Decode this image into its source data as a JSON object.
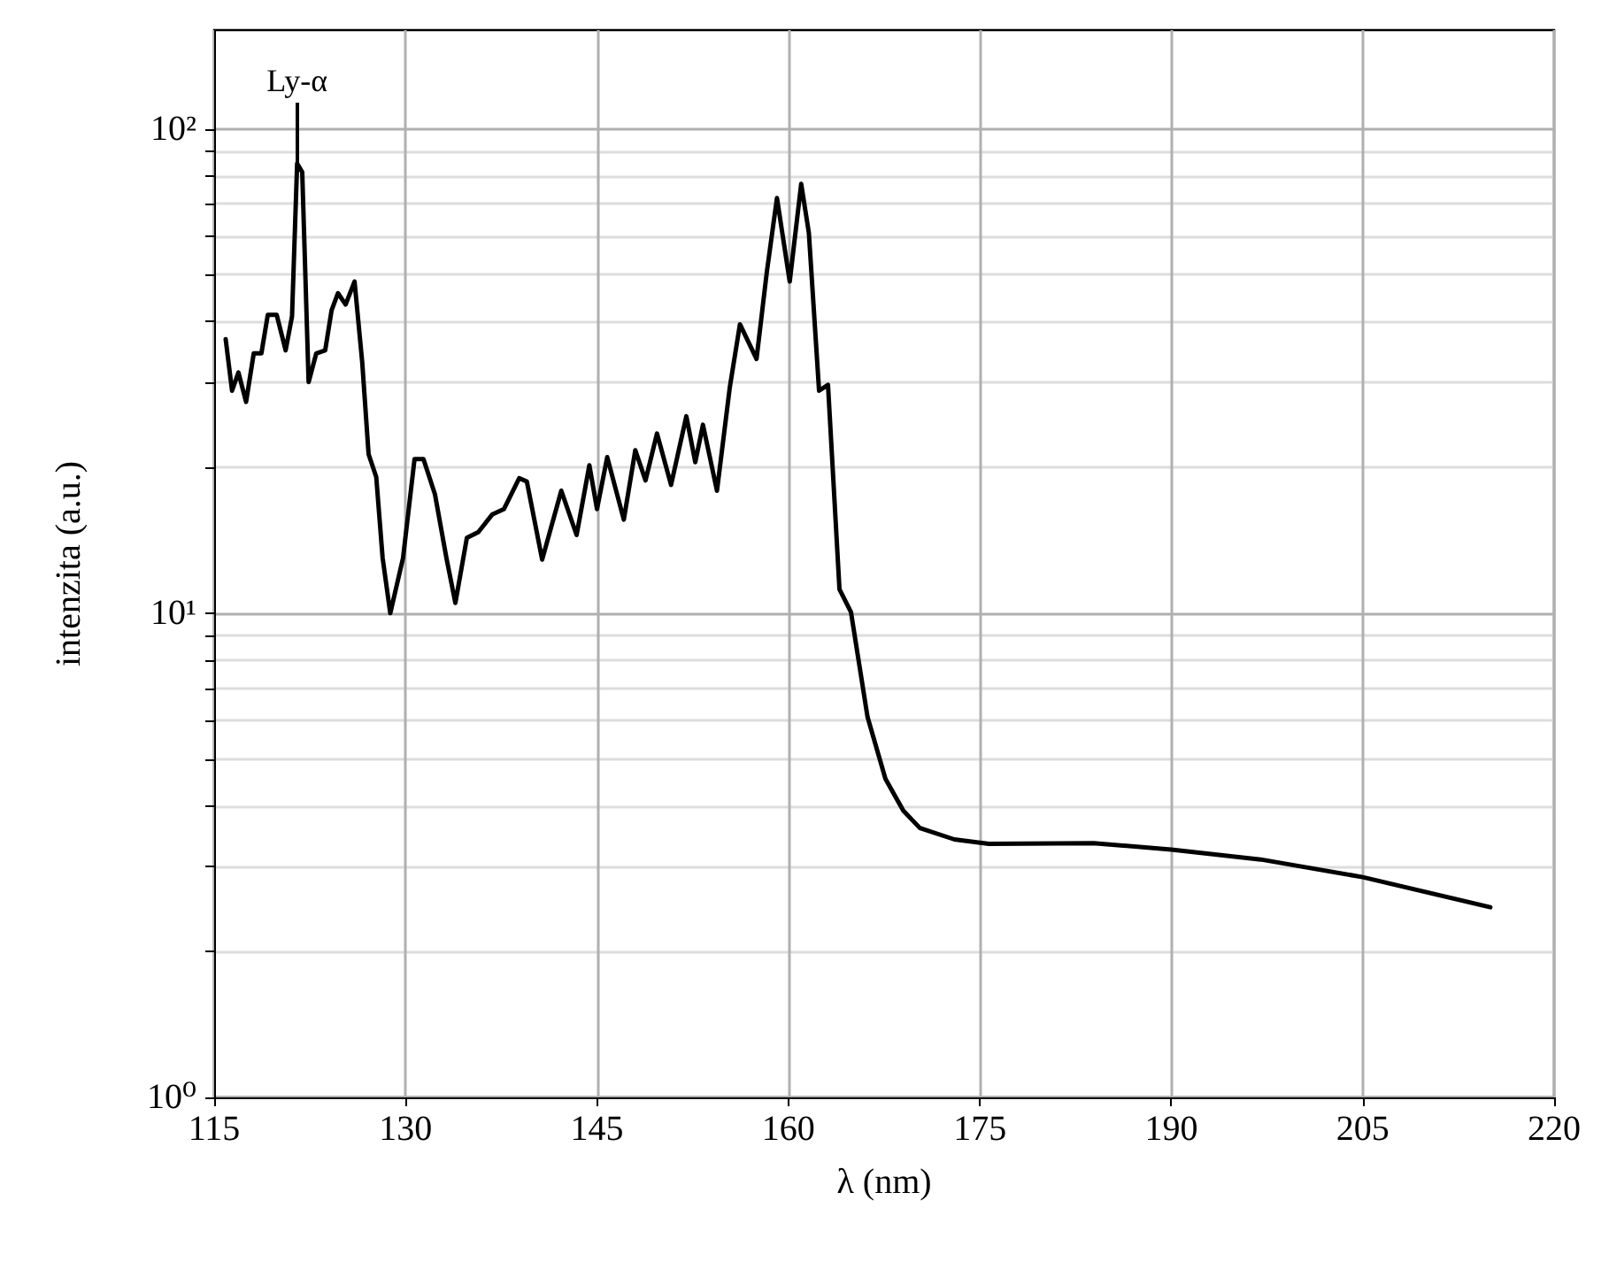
{
  "chart_data": {
    "type": "line",
    "xlabel": "λ (nm)",
    "ylabel": "intenzita (a.u.)",
    "annotations": [
      {
        "text": "Ly-α",
        "x": 121.5,
        "y": 84.8
      }
    ],
    "series": [
      {
        "color": "#000000",
        "x": [
          115.9,
          116.4,
          116.9,
          117.5,
          118.1,
          118.7,
          119.2,
          119.9,
          120.6,
          121.1,
          121.5,
          121.9,
          122.4,
          123.0,
          123.7,
          124.2,
          124.7,
          125.3,
          126.0,
          126.6,
          127.1,
          127.7,
          128.2,
          128.8,
          129.8,
          130.7,
          131.4,
          132.3,
          133.2,
          133.9,
          134.8,
          135.7,
          136.8,
          137.7,
          138.9,
          139.5,
          140.7,
          142.2,
          143.4,
          144.4,
          145.0,
          145.8,
          147.1,
          148.0,
          148.8,
          149.7,
          150.8,
          152.0,
          152.7,
          153.3,
          154.4,
          155.4,
          156.2,
          157.5,
          158.3,
          159.1,
          160.1,
          161.0,
          161.6,
          162.4,
          163.1,
          164.0,
          164.9,
          166.2,
          167.6,
          169.0,
          170.3,
          173.0,
          175.7,
          183.9,
          190,
          197,
          205,
          215
        ],
        "values": [
          36.8,
          28.8,
          31.4,
          27.3,
          34.4,
          34.4,
          41.3,
          41.3,
          34.9,
          41,
          84.8,
          81.4,
          30,
          34.4,
          34.9,
          42.2,
          45.8,
          43.4,
          48.4,
          33,
          21.3,
          19.1,
          13,
          10,
          13,
          20.8,
          20.8,
          17.6,
          13,
          10.5,
          14.3,
          14.7,
          16,
          16.4,
          19,
          18.7,
          12.9,
          17.9,
          14.5,
          20.2,
          16.4,
          21,
          15.6,
          21.7,
          18.8,
          23.5,
          18.4,
          25.5,
          20.5,
          24.5,
          17.9,
          29.2,
          39.5,
          33.5,
          50.5,
          72,
          48.4,
          77,
          61,
          28.8,
          29.6,
          11.2,
          10.05,
          6.1,
          4.55,
          3.91,
          3.6,
          3.41,
          3.34,
          3.35,
          3.25,
          3.1,
          2.85,
          2.47
        ]
      }
    ],
    "log": "y",
    "xlim": [
      115,
      220
    ],
    "xticks": [
      115,
      130,
      145,
      160,
      175,
      190,
      205,
      220
    ],
    "ylim": [
      1,
      160
    ],
    "yticks": [
      {
        "value": 1,
        "label": "10⁰"
      },
      {
        "value": 2,
        "label": null
      },
      {
        "value": 3,
        "label": null
      },
      {
        "value": 4,
        "label": null
      },
      {
        "value": 5,
        "label": null
      },
      {
        "value": 6,
        "label": null
      },
      {
        "value": 7,
        "label": null
      },
      {
        "value": 8,
        "label": null
      },
      {
        "value": 9,
        "label": null
      },
      {
        "value": 10,
        "label": "10¹"
      },
      {
        "value": 20,
        "label": null
      },
      {
        "value": 30,
        "label": null
      },
      {
        "value": 40,
        "label": null
      },
      {
        "value": 50,
        "label": null
      },
      {
        "value": 60,
        "label": null
      },
      {
        "value": 70,
        "label": null
      },
      {
        "value": 80,
        "label": null
      },
      {
        "value": 90,
        "label": null
      },
      {
        "value": 100,
        "label": "10²"
      }
    ],
    "grid": true,
    "marker": "none",
    "line_style": "solid"
  }
}
